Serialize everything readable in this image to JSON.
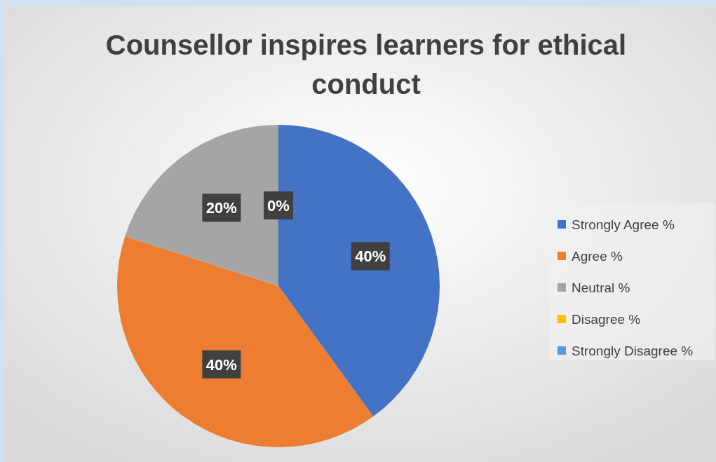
{
  "chart_data": {
    "type": "pie",
    "title": "Counsellor inspires learners for ethical conduct",
    "categories": [
      "Strongly Agree %",
      "Agree %",
      "Neutral %",
      "Disagree %",
      "Strongly Disagree %"
    ],
    "values": [
      40,
      40,
      20,
      0,
      0
    ],
    "colors": [
      "#4472c4",
      "#ed7d31",
      "#a5a5a5",
      "#ffc000",
      "#5b9bd5"
    ],
    "value_labels": [
      "40%",
      "40%",
      "20%",
      "0%",
      null
    ],
    "legend": "right"
  }
}
